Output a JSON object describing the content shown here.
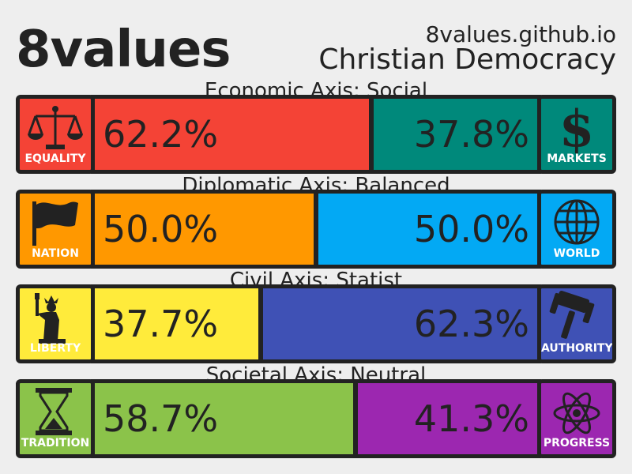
{
  "header": {
    "logo": "8values",
    "site": "8values.github.io",
    "ideology": "Christian Democracy"
  },
  "axes": [
    {
      "title": "Economic Axis: Social",
      "left": {
        "label": "EQUALITY",
        "value": 62.2,
        "value_text": "62.2%",
        "color": "#F44336",
        "icon": "scales-icon"
      },
      "right": {
        "label": "MARKETS",
        "value": 37.8,
        "value_text": "37.8%",
        "color": "#00897B",
        "icon": "dollar-icon"
      }
    },
    {
      "title": "Diplomatic Axis: Balanced",
      "left": {
        "label": "NATION",
        "value": 50.0,
        "value_text": "50.0%",
        "color": "#FF9800",
        "icon": "flag-icon"
      },
      "right": {
        "label": "WORLD",
        "value": 50.0,
        "value_text": "50.0%",
        "color": "#03A9F4",
        "icon": "globe-icon"
      }
    },
    {
      "title": "Civil Axis: Statist",
      "left": {
        "label": "LIBERTY",
        "value": 37.7,
        "value_text": "37.7%",
        "color": "#FFEB3B",
        "icon": "statue-of-liberty-icon"
      },
      "right": {
        "label": "AUTHORITY",
        "value": 62.3,
        "value_text": "62.3%",
        "color": "#3F51B5",
        "icon": "gavel-icon"
      }
    },
    {
      "title": "Societal Axis: Neutral",
      "left": {
        "label": "TRADITION",
        "value": 58.7,
        "value_text": "58.7%",
        "color": "#8BC34A",
        "icon": "hourglass-icon"
      },
      "right": {
        "label": "PROGRESS",
        "value": 41.3,
        "value_text": "41.3%",
        "color": "#9C27B0",
        "icon": "atom-icon"
      }
    }
  ]
}
